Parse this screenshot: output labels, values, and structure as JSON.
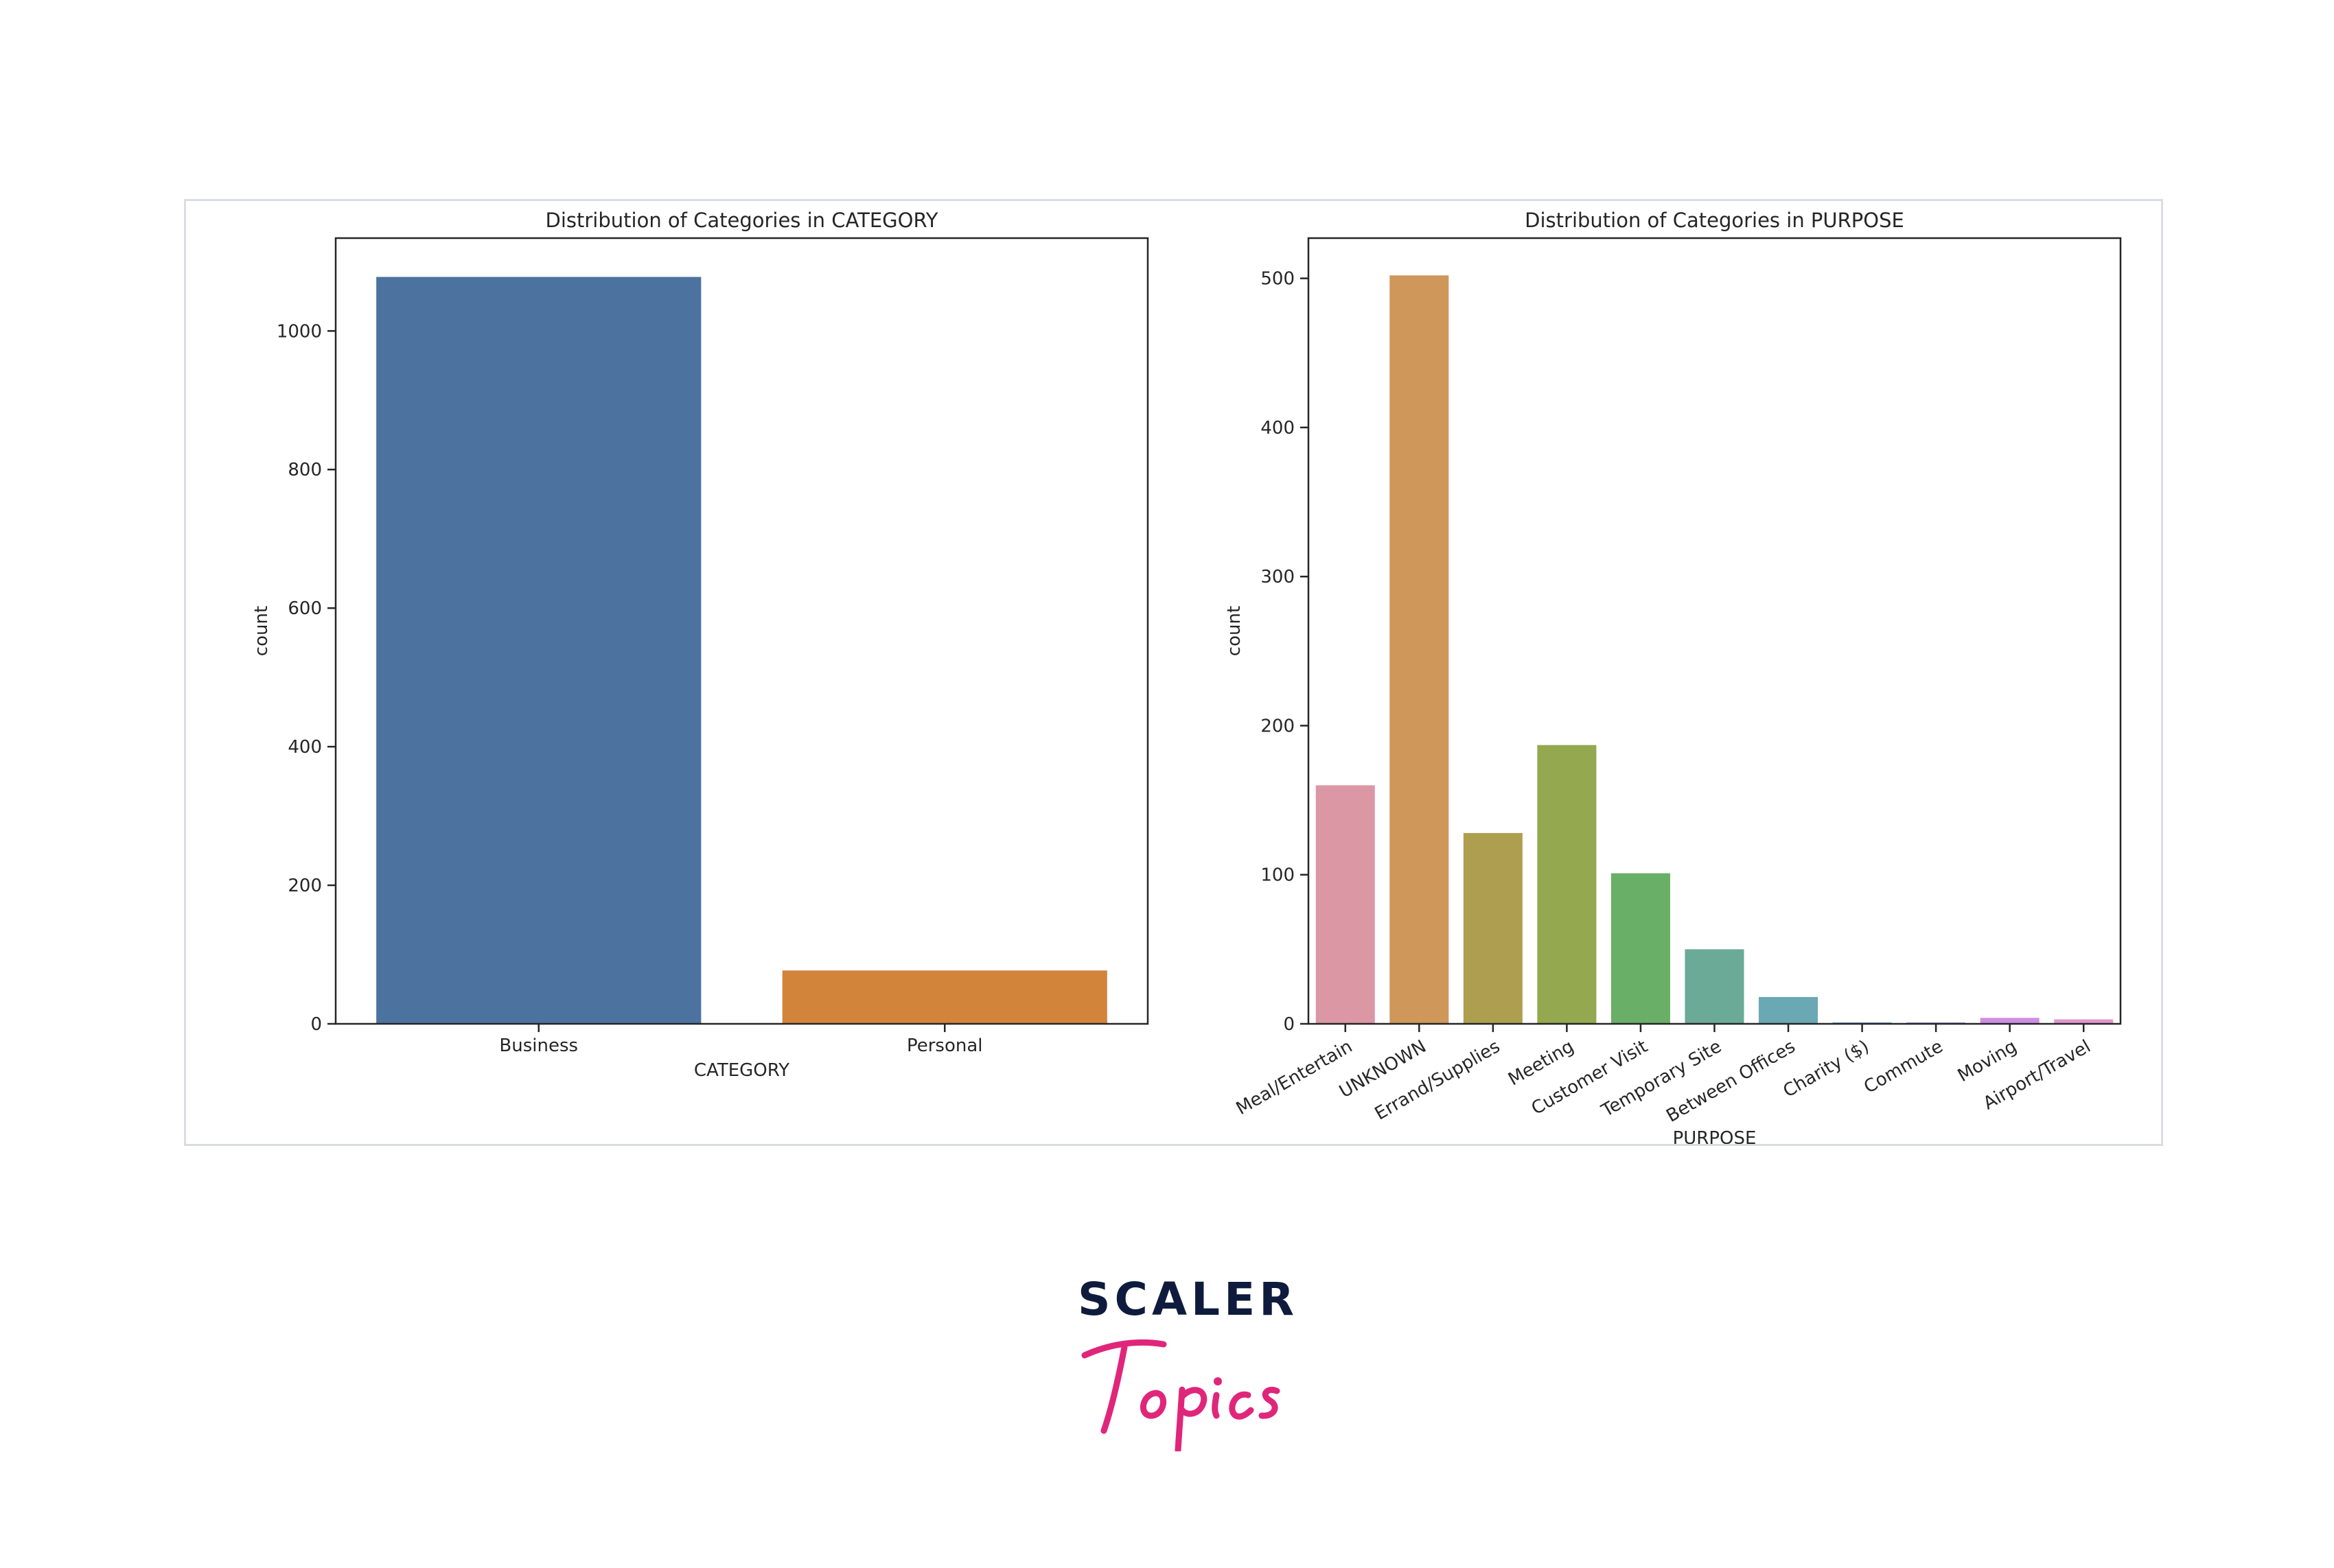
{
  "chart_data": [
    {
      "type": "bar",
      "title": "Distribution of Categories in CATEGORY",
      "xlabel": "CATEGORY",
      "ylabel": "count",
      "ylim": [
        0,
        1134
      ],
      "yticks": [
        0,
        200,
        400,
        600,
        800,
        1000
      ],
      "categories": [
        "Business",
        "Personal"
      ],
      "values": [
        1078,
        77
      ],
      "colors": [
        "#4c72a0",
        "#d3843b"
      ],
      "grid": false
    },
    {
      "type": "bar",
      "title": "Distribution of Categories in PURPOSE",
      "xlabel": "PURPOSE",
      "ylabel": "count",
      "ylim": [
        0,
        527
      ],
      "yticks": [
        0,
        100,
        200,
        300,
        400,
        500
      ],
      "categories": [
        "Meal/Entertain",
        "UNKNOWN",
        "Errand/Supplies",
        "Meeting",
        "Customer Visit",
        "Temporary Site",
        "Between Offices",
        "Charity ($)",
        "Commute",
        "Moving",
        "Airport/Travel"
      ],
      "values": [
        160,
        502,
        128,
        187,
        101,
        50,
        18,
        1,
        1,
        4,
        3
      ],
      "colors": [
        "#dc97a5",
        "#cf975a",
        "#ae9f50",
        "#93a84f",
        "#69af67",
        "#6aaa97",
        "#6aa8b3",
        "#7aa5d0",
        "#a99be0",
        "#cf8de4",
        "#e296cf"
      ],
      "grid": false
    }
  ],
  "logo": {
    "line1": "SCALER",
    "line2": "Topics",
    "colors": {
      "line1": "#0f1b3d",
      "line2": "#e0267a"
    }
  }
}
